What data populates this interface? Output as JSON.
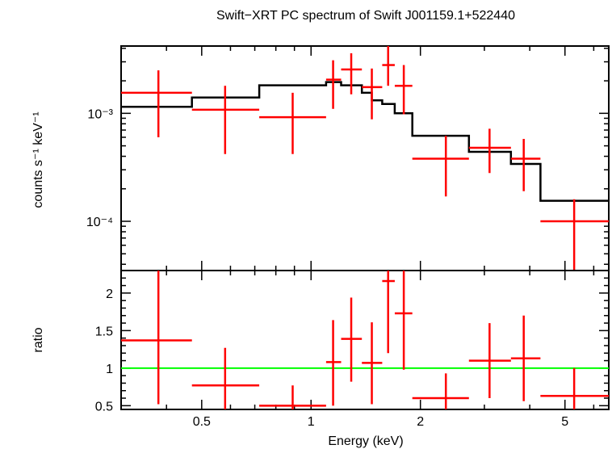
{
  "chart_data": {
    "title": "Swift−XRT PC spectrum of Swift J001159.1+522440",
    "xlabel": "Energy (keV)",
    "x_scale": "log",
    "xlim": [
      0.3,
      6.6
    ],
    "x_ticks": [
      {
        "v": 0.5,
        "label": "0.5"
      },
      {
        "v": 1,
        "label": "1"
      },
      {
        "v": 2,
        "label": "2"
      },
      {
        "v": 5,
        "label": "5"
      }
    ],
    "colors": {
      "data": "#ff0000",
      "model": "#000000",
      "ratio_line": "#00ff00",
      "axes": "#000000"
    },
    "panels": [
      {
        "type": "scatter",
        "ylabel": "counts s⁻¹ keV⁻¹",
        "y_scale": "log",
        "ylim": [
          3.5e-05,
          0.0042
        ],
        "y_ticks": [
          {
            "v": 0.001,
            "label": "10⁻³"
          },
          {
            "v": 0.0001,
            "label": "10⁻⁴"
          }
        ],
        "points": [
          {
            "x": 0.38,
            "xlo": 0.3,
            "xhi": 0.47,
            "y": 0.00155,
            "ylo": 0.0006,
            "yhi": 0.0025
          },
          {
            "x": 0.58,
            "xlo": 0.47,
            "xhi": 0.72,
            "y": 0.00108,
            "ylo": 0.00042,
            "yhi": 0.0018
          },
          {
            "x": 0.89,
            "xlo": 0.72,
            "xhi": 1.1,
            "y": 0.00092,
            "ylo": 0.00042,
            "yhi": 0.00155
          },
          {
            "x": 1.15,
            "xlo": 1.1,
            "xhi": 1.21,
            "y": 0.00205,
            "ylo": 0.0011,
            "yhi": 0.0031
          },
          {
            "x": 1.29,
            "xlo": 1.21,
            "xhi": 1.38,
            "y": 0.00255,
            "ylo": 0.0015,
            "yhi": 0.0036
          },
          {
            "x": 1.47,
            "xlo": 1.38,
            "xhi": 1.57,
            "y": 0.00175,
            "ylo": 0.00088,
            "yhi": 0.0026
          },
          {
            "x": 1.63,
            "xlo": 1.57,
            "xhi": 1.7,
            "y": 0.0028,
            "ylo": 0.0018,
            "yhi": 0.0042
          },
          {
            "x": 1.8,
            "xlo": 1.7,
            "xhi": 1.9,
            "y": 0.0018,
            "ylo": 0.00098,
            "yhi": 0.0028
          },
          {
            "x": 2.35,
            "xlo": 1.9,
            "xhi": 2.72,
            "y": 0.00038,
            "ylo": 0.00017,
            "yhi": 0.00062
          },
          {
            "x": 3.1,
            "xlo": 2.72,
            "xhi": 3.55,
            "y": 0.00048,
            "ylo": 0.00028,
            "yhi": 0.00072
          },
          {
            "x": 3.85,
            "xlo": 3.55,
            "xhi": 4.28,
            "y": 0.00038,
            "ylo": 0.00019,
            "yhi": 0.00058
          },
          {
            "x": 5.3,
            "xlo": 4.28,
            "xhi": 6.6,
            "y": 0.0001,
            "ylo": 3.5e-05,
            "yhi": 0.00016
          }
        ],
        "model_step": [
          {
            "xlo": 0.3,
            "xhi": 0.47,
            "y": 0.00115
          },
          {
            "xlo": 0.47,
            "xhi": 0.72,
            "y": 0.0014
          },
          {
            "xlo": 0.72,
            "xhi": 1.1,
            "y": 0.00182
          },
          {
            "xlo": 1.1,
            "xhi": 1.21,
            "y": 0.00195
          },
          {
            "xlo": 1.21,
            "xhi": 1.38,
            "y": 0.00182
          },
          {
            "xlo": 1.38,
            "xhi": 1.47,
            "y": 0.00155
          },
          {
            "xlo": 1.47,
            "xhi": 1.57,
            "y": 0.00132
          },
          {
            "xlo": 1.57,
            "xhi": 1.7,
            "y": 0.00122
          },
          {
            "xlo": 1.7,
            "xhi": 1.9,
            "y": 0.001
          },
          {
            "xlo": 1.9,
            "xhi": 2.72,
            "y": 0.00062
          },
          {
            "xlo": 2.72,
            "xhi": 3.55,
            "y": 0.00044
          },
          {
            "xlo": 3.55,
            "xhi": 4.28,
            "y": 0.00034
          },
          {
            "xlo": 4.28,
            "xhi": 6.6,
            "y": 0.000155
          }
        ]
      },
      {
        "type": "scatter",
        "ylabel": "ratio",
        "y_scale": "linear",
        "ylim": [
          0.45,
          2.3
        ],
        "y_ticks": [
          {
            "v": 0.5,
            "label": "0.5"
          },
          {
            "v": 1,
            "label": "1"
          },
          {
            "v": 1.5,
            "label": "1.5"
          },
          {
            "v": 2,
            "label": "2"
          }
        ],
        "reference_line": 1,
        "points": [
          {
            "x": 0.38,
            "xlo": 0.3,
            "xhi": 0.47,
            "y": 1.37,
            "ylo": 0.52,
            "yhi": 2.3
          },
          {
            "x": 0.58,
            "xlo": 0.47,
            "xhi": 0.72,
            "y": 0.77,
            "ylo": 0.45,
            "yhi": 1.27
          },
          {
            "x": 0.89,
            "xlo": 0.72,
            "xhi": 1.1,
            "y": 0.5,
            "ylo": 0.45,
            "yhi": 0.77
          },
          {
            "x": 1.15,
            "xlo": 1.1,
            "xhi": 1.21,
            "y": 1.08,
            "ylo": 0.5,
            "yhi": 1.64
          },
          {
            "x": 1.29,
            "xlo": 1.21,
            "xhi": 1.38,
            "y": 1.39,
            "ylo": 0.82,
            "yhi": 1.94
          },
          {
            "x": 1.47,
            "xlo": 1.38,
            "xhi": 1.57,
            "y": 1.07,
            "ylo": 0.52,
            "yhi": 1.61
          },
          {
            "x": 1.63,
            "xlo": 1.57,
            "xhi": 1.7,
            "y": 2.16,
            "ylo": 1.2,
            "yhi": 2.3
          },
          {
            "x": 1.8,
            "xlo": 1.7,
            "xhi": 1.9,
            "y": 1.73,
            "ylo": 0.98,
            "yhi": 2.3
          },
          {
            "x": 2.35,
            "xlo": 1.9,
            "xhi": 2.72,
            "y": 0.6,
            "ylo": 0.45,
            "yhi": 0.93
          },
          {
            "x": 3.1,
            "xlo": 2.72,
            "xhi": 3.55,
            "y": 1.1,
            "ylo": 0.6,
            "yhi": 1.6
          },
          {
            "x": 3.85,
            "xlo": 3.55,
            "xhi": 4.28,
            "y": 1.13,
            "ylo": 0.56,
            "yhi": 1.7
          },
          {
            "x": 5.3,
            "xlo": 4.28,
            "xhi": 6.6,
            "y": 0.63,
            "ylo": 0.45,
            "yhi": 1.0
          }
        ]
      }
    ]
  }
}
